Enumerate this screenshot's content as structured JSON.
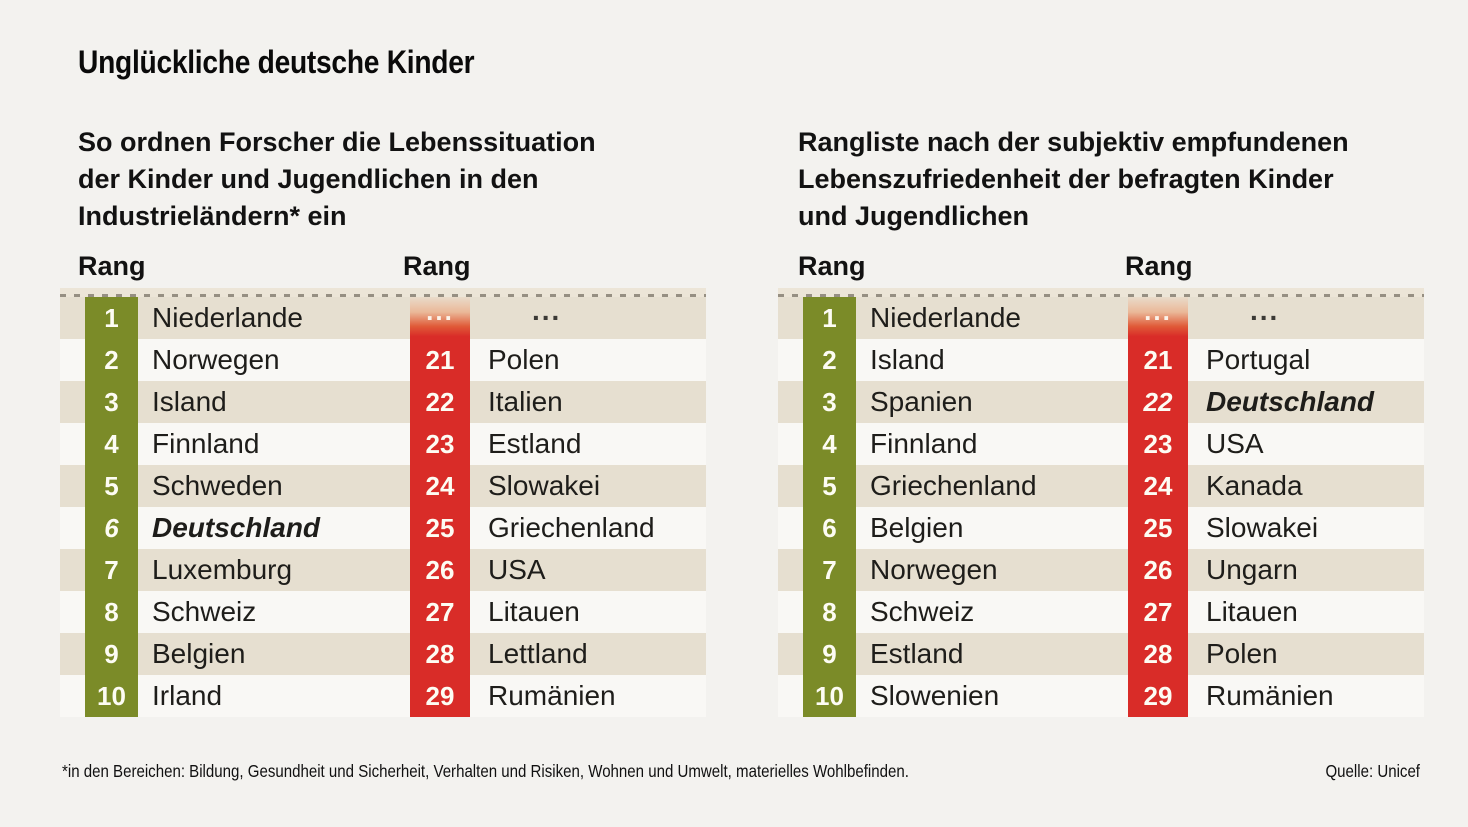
{
  "title": "Unglückliche deutsche Kinder",
  "footnote": "*in den Bereichen: Bildung, Gesundheit und Sicherheit, Verhalten und Risiken, Wohnen und Umwelt, materielles Wohlbefinden.",
  "source": "Quelle: Unicef",
  "colors": {
    "page_bg": "#f3f2ef",
    "row_beige": "#e6dfd0",
    "row_white": "#f9f8f5",
    "rank_green": "#7b8b28",
    "rank_red": "#d92c28",
    "rank_text": "#fdfcf3",
    "country_text": "#1e1d1a"
  },
  "chart_data": [
    {
      "type": "table",
      "title": "So ordnen Forscher die Lebenssituation der Kinder und Jugendlichen in den Industrieländern* ein",
      "subtitle_lines": [
        "So ordnen Forscher die Lebenssituation",
        "der Kinder und Jugendlichen in den",
        "Industrieländern* ein"
      ],
      "rank_headers": [
        "Rang",
        "Rang"
      ],
      "highlight_country": "Deutschland",
      "left_column": [
        {
          "rank": "1",
          "country": "Niederlande"
        },
        {
          "rank": "2",
          "country": "Norwegen"
        },
        {
          "rank": "3",
          "country": "Island"
        },
        {
          "rank": "4",
          "country": "Finnland"
        },
        {
          "rank": "5",
          "country": "Schweden"
        },
        {
          "rank": "6",
          "country": "Deutschland"
        },
        {
          "rank": "7",
          "country": "Luxemburg"
        },
        {
          "rank": "8",
          "country": "Schweiz"
        },
        {
          "rank": "9",
          "country": "Belgien"
        },
        {
          "rank": "10",
          "country": "Irland"
        }
      ],
      "right_column": [
        {
          "rank": "...",
          "country": "..."
        },
        {
          "rank": "21",
          "country": "Polen"
        },
        {
          "rank": "22",
          "country": "Italien"
        },
        {
          "rank": "23",
          "country": "Estland"
        },
        {
          "rank": "24",
          "country": "Slowakei"
        },
        {
          "rank": "25",
          "country": "Griechenland"
        },
        {
          "rank": "26",
          "country": "USA"
        },
        {
          "rank": "27",
          "country": "Litauen"
        },
        {
          "rank": "28",
          "country": "Lettland"
        },
        {
          "rank": "29",
          "country": "Rumänien"
        }
      ]
    },
    {
      "type": "table",
      "title": "Rangliste nach der subjektiv empfundenen Lebenszufriedenheit der befragten Kinder und Jugendlichen",
      "subtitle_lines": [
        "Rangliste nach der subjektiv empfundenen",
        "Lebenszufriedenheit der befragten Kinder",
        "und Jugendlichen"
      ],
      "rank_headers": [
        "Rang",
        "Rang"
      ],
      "highlight_country": "Deutschland",
      "left_column": [
        {
          "rank": "1",
          "country": "Niederlande"
        },
        {
          "rank": "2",
          "country": "Island"
        },
        {
          "rank": "3",
          "country": "Spanien"
        },
        {
          "rank": "4",
          "country": "Finnland"
        },
        {
          "rank": "5",
          "country": "Griechenland"
        },
        {
          "rank": "6",
          "country": "Belgien"
        },
        {
          "rank": "7",
          "country": "Norwegen"
        },
        {
          "rank": "8",
          "country": "Schweiz"
        },
        {
          "rank": "9",
          "country": "Estland"
        },
        {
          "rank": "10",
          "country": "Slowenien"
        }
      ],
      "right_column": [
        {
          "rank": "...",
          "country": "..."
        },
        {
          "rank": "21",
          "country": "Portugal"
        },
        {
          "rank": "22",
          "country": "Deutschland"
        },
        {
          "rank": "23",
          "country": "USA"
        },
        {
          "rank": "24",
          "country": "Kanada"
        },
        {
          "rank": "25",
          "country": "Slowakei"
        },
        {
          "rank": "26",
          "country": "Ungarn"
        },
        {
          "rank": "27",
          "country": "Litauen"
        },
        {
          "rank": "28",
          "country": "Polen"
        },
        {
          "rank": "29",
          "country": "Rumänien"
        }
      ]
    }
  ]
}
